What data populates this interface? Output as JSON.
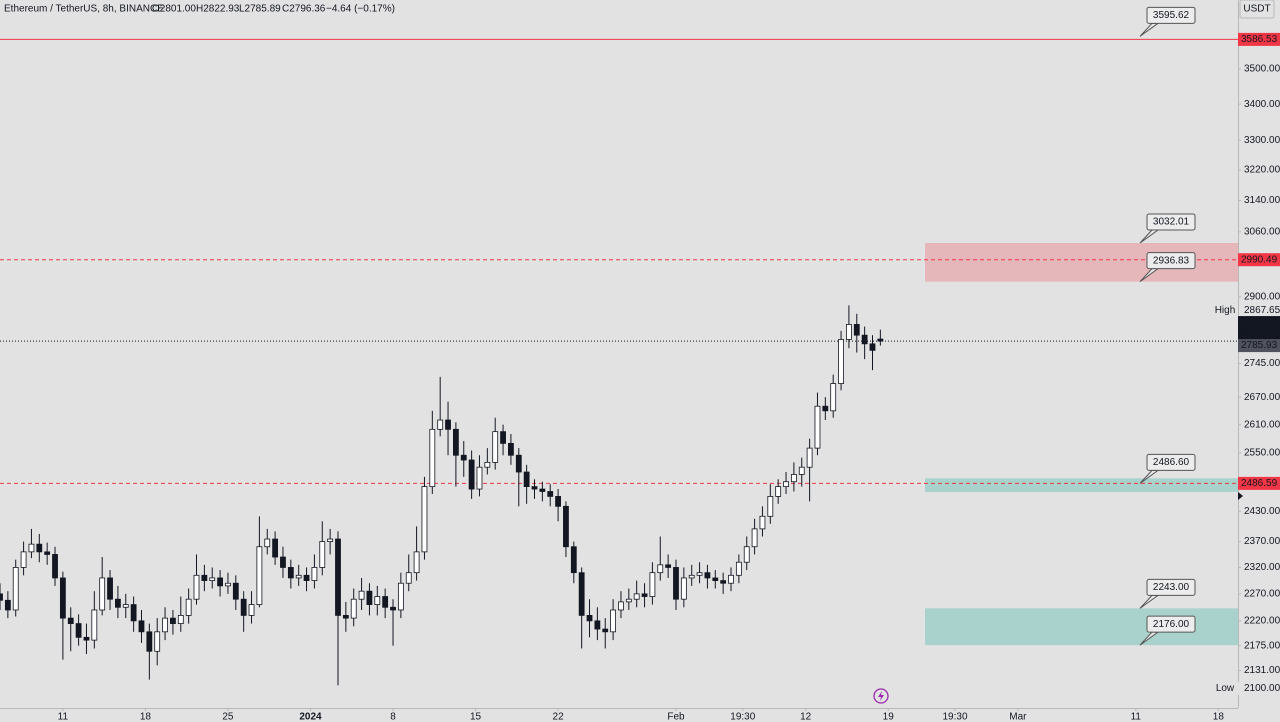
{
  "chart_data": {
    "type": "candlestick",
    "header": {
      "symbol": "Ethereum / TetherUS, 8h, BINANCE",
      "open": "O2801.00",
      "high": "H2822.93",
      "low": "L2785.89",
      "close": "C2796.36",
      "change": "−4.64 (−0.17%)"
    },
    "currency": "USDT",
    "log_scale": true,
    "grid": false,
    "up_color": "#ffffff",
    "down_color": "#131722",
    "xlim": [
      -16,
      299
    ],
    "ylim": [
      2066,
      3705
    ],
    "xticks": [
      {
        "value": 0,
        "label": "11"
      },
      {
        "value": 21,
        "label": "18"
      },
      {
        "value": 42,
        "label": "25"
      },
      {
        "value": 63,
        "label": "2024"
      },
      {
        "value": 84,
        "label": "8"
      },
      {
        "value": 105,
        "label": "15"
      },
      {
        "value": 126,
        "label": "22"
      },
      {
        "value": 156,
        "label": "Feb"
      },
      {
        "value": 173,
        "label": "19:30"
      },
      {
        "value": 189,
        "label": "12"
      },
      {
        "value": 210,
        "label": "19"
      },
      {
        "value": 227,
        "label": "19:30"
      },
      {
        "value": 243,
        "label": "Mar"
      },
      {
        "value": 273,
        "label": "11"
      },
      {
        "value": 294,
        "label": "18"
      }
    ],
    "yticks": [
      {
        "value": 2131,
        "label": "2131.00"
      },
      {
        "value": 2175,
        "label": "2175.00"
      },
      {
        "value": 2220,
        "label": "2220.00"
      },
      {
        "value": 2270,
        "label": "2270.00"
      },
      {
        "value": 2320,
        "label": "2320.00"
      },
      {
        "value": 2370,
        "label": "2370.00"
      },
      {
        "value": 2430,
        "label": "2430.00"
      },
      {
        "value": 2550,
        "label": "2550.00"
      },
      {
        "value": 2610,
        "label": "2610.00"
      },
      {
        "value": 2670,
        "label": "2670.00"
      },
      {
        "value": 2745,
        "label": "2745.00"
      },
      {
        "value": 2900,
        "label": "2900.00"
      },
      {
        "value": 3060,
        "label": "3060.00"
      },
      {
        "value": 3140,
        "label": "3140.00"
      },
      {
        "value": 3220,
        "label": "3220.00"
      },
      {
        "value": 3300,
        "label": "3300.00"
      },
      {
        "value": 3400,
        "label": "3400.00"
      },
      {
        "value": 3500,
        "label": "3500.00"
      }
    ],
    "x": [
      -16,
      -14,
      -12,
      -10,
      -8,
      -6,
      -4,
      -2,
      0,
      2,
      4,
      6,
      8,
      10,
      12,
      14,
      16,
      18,
      20,
      22,
      24,
      26,
      28,
      30,
      32,
      34,
      36,
      38,
      40,
      42,
      44,
      46,
      48,
      50,
      52,
      54,
      56,
      58,
      60,
      62,
      64,
      66,
      68,
      70,
      72,
      74,
      76,
      78,
      80,
      82,
      84,
      86,
      88,
      90,
      92,
      94,
      96,
      98,
      100,
      102,
      104,
      106,
      108,
      110,
      112,
      114,
      116,
      118,
      120,
      122,
      124,
      126,
      128,
      130,
      132,
      134,
      136,
      138,
      140,
      142,
      144,
      146,
      148,
      150,
      152,
      154,
      156,
      158,
      160,
      162,
      164,
      166,
      168,
      170,
      172,
      174,
      176,
      178,
      180,
      182,
      184,
      186,
      188,
      190,
      192,
      194,
      196,
      198,
      200,
      202,
      204,
      206,
      208
    ],
    "open": [
      2270,
      2258,
      2240,
      2320,
      2350,
      2365,
      2350,
      2345,
      2300,
      2225,
      2215,
      2190,
      2185,
      2240,
      2300,
      2260,
      2245,
      2250,
      2220,
      2200,
      2165,
      2200,
      2225,
      2215,
      2230,
      2260,
      2305,
      2295,
      2300,
      2285,
      2290,
      2260,
      2230,
      2250,
      2360,
      2375,
      2340,
      2320,
      2300,
      2305,
      2295,
      2320,
      2370,
      2375,
      2230,
      2225,
      2260,
      2275,
      2250,
      2265,
      2245,
      2240,
      2290,
      2310,
      2350,
      2480,
      2600,
      2620,
      2600,
      2545,
      2535,
      2475,
      2520,
      2530,
      2595,
      2570,
      2545,
      2510,
      2480,
      2475,
      2470,
      2460,
      2440,
      2360,
      2310,
      2230,
      2220,
      2205,
      2200,
      2240,
      2255,
      2260,
      2270,
      2265,
      2310,
      2325,
      2320,
      2260,
      2300,
      2305,
      2310,
      2300,
      2295,
      2290,
      2305,
      2330,
      2360,
      2395,
      2420,
      2460,
      2480,
      2490,
      2505,
      2520,
      2560,
      2650,
      2640,
      2700,
      2800,
      2835,
      2810,
      2790,
      2801
    ],
    "high": [
      2290,
      2275,
      2335,
      2370,
      2395,
      2385,
      2368,
      2360,
      2312,
      2245,
      2232,
      2215,
      2275,
      2340,
      2315,
      2285,
      2270,
      2265,
      2240,
      2215,
      2225,
      2245,
      2240,
      2265,
      2280,
      2345,
      2325,
      2320,
      2315,
      2310,
      2305,
      2275,
      2275,
      2420,
      2395,
      2390,
      2360,
      2335,
      2325,
      2320,
      2345,
      2410,
      2395,
      2390,
      2255,
      2280,
      2300,
      2290,
      2285,
      2280,
      2260,
      2310,
      2345,
      2400,
      2500,
      2640,
      2715,
      2660,
      2615,
      2575,
      2555,
      2545,
      2560,
      2625,
      2610,
      2590,
      2560,
      2525,
      2495,
      2490,
      2485,
      2475,
      2450,
      2370,
      2320,
      2260,
      2245,
      2225,
      2260,
      2275,
      2280,
      2295,
      2290,
      2330,
      2380,
      2345,
      2335,
      2320,
      2325,
      2330,
      2325,
      2315,
      2310,
      2320,
      2345,
      2380,
      2415,
      2440,
      2485,
      2495,
      2510,
      2530,
      2540,
      2580,
      2680,
      2670,
      2720,
      2820,
      2880,
      2860,
      2830,
      2810,
      2822.93
    ],
    "low": [
      2240,
      2225,
      2228,
      2305,
      2338,
      2330,
      2325,
      2285,
      2150,
      2165,
      2175,
      2160,
      2170,
      2230,
      2240,
      2225,
      2225,
      2200,
      2180,
      2115,
      2140,
      2185,
      2195,
      2200,
      2215,
      2250,
      2275,
      2280,
      2265,
      2270,
      2240,
      2200,
      2215,
      2245,
      2345,
      2325,
      2300,
      2280,
      2285,
      2275,
      2280,
      2305,
      2345,
      2105,
      2200,
      2210,
      2240,
      2230,
      2230,
      2225,
      2175,
      2225,
      2275,
      2295,
      2335,
      2465,
      2585,
      2545,
      2480,
      2500,
      2455,
      2460,
      2505,
      2515,
      2545,
      2525,
      2440,
      2445,
      2455,
      2450,
      2440,
      2410,
      2340,
      2290,
      2170,
      2190,
      2185,
      2170,
      2185,
      2225,
      2240,
      2245,
      2245,
      2250,
      2295,
      2300,
      2240,
      2245,
      2285,
      2290,
      2280,
      2280,
      2270,
      2275,
      2290,
      2315,
      2345,
      2380,
      2405,
      2445,
      2465,
      2470,
      2480,
      2450,
      2545,
      2620,
      2625,
      2685,
      2780,
      2770,
      2755,
      2730,
      2785.89
    ],
    "close": [
      2258,
      2240,
      2320,
      2350,
      2365,
      2350,
      2345,
      2300,
      2225,
      2215,
      2190,
      2185,
      2240,
      2300,
      2260,
      2245,
      2250,
      2220,
      2200,
      2165,
      2200,
      2225,
      2215,
      2230,
      2260,
      2305,
      2295,
      2300,
      2285,
      2290,
      2260,
      2230,
      2250,
      2360,
      2375,
      2340,
      2320,
      2300,
      2305,
      2295,
      2320,
      2370,
      2375,
      2230,
      2225,
      2260,
      2275,
      2250,
      2265,
      2245,
      2240,
      2290,
      2310,
      2350,
      2480,
      2600,
      2620,
      2600,
      2545,
      2535,
      2475,
      2520,
      2530,
      2595,
      2570,
      2545,
      2510,
      2480,
      2475,
      2470,
      2460,
      2440,
      2360,
      2310,
      2230,
      2220,
      2205,
      2200,
      2240,
      2255,
      2260,
      2270,
      2265,
      2310,
      2325,
      2320,
      2260,
      2300,
      2305,
      2310,
      2300,
      2295,
      2290,
      2305,
      2330,
      2360,
      2395,
      2420,
      2460,
      2480,
      2490,
      2505,
      2520,
      2560,
      2650,
      2640,
      2700,
      2800,
      2835,
      2810,
      2790,
      2775,
      2796.36
    ],
    "levels": [
      {
        "value": 3586.53,
        "style": "solid"
      },
      {
        "value": 2990.49,
        "style": "dashed"
      },
      {
        "value": 2486.59,
        "style": "dashed"
      }
    ],
    "level_color": "#f23645",
    "zones": [
      {
        "top": 3032.01,
        "bottom": 2936.83,
        "color": "rgba(242,54,69,0.25)"
      },
      {
        "top": 2497,
        "bottom": 2469,
        "color": "rgba(34,171,148,0.3)"
      },
      {
        "top": 2243,
        "bottom": 2176,
        "color": "rgba(34,171,148,0.3)"
      }
    ],
    "callouts": [
      3595.62,
      3032.01,
      2936.83,
      {
        "value": 2486.6,
        "label": "2486.60"
      },
      {
        "value": 2243,
        "label": "2243.00"
      },
      {
        "value": 2176,
        "label": "2176.00"
      }
    ],
    "last_price": 2796.36,
    "countdown": "01:31:17",
    "price_line": 2785.93,
    "session_high": {
      "label": "High",
      "value": 2867.65
    },
    "session_low": {
      "label": "Low",
      "value": {
        "value": 2100,
        "label": "2100.00"
      }
    }
  }
}
